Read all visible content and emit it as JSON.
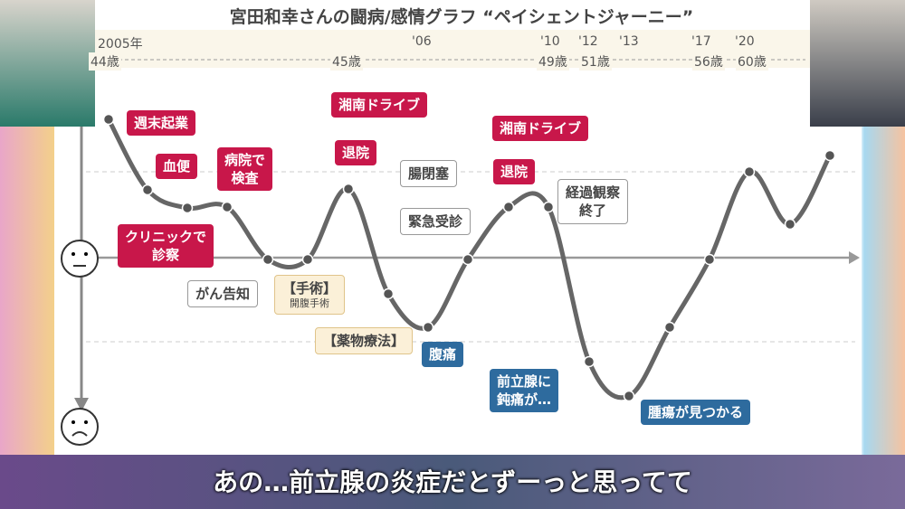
{
  "header": {
    "title": "宮田和幸さんの闘病/感情グラフ “ペイシェントジャーニー”"
  },
  "timeline": {
    "years": [
      "2005年",
      "'06",
      "'10",
      "'12",
      "'13",
      "'17",
      "'20"
    ],
    "ages": [
      "44歳",
      "45歳",
      "49歳",
      "51歳",
      "56歳",
      "60歳"
    ]
  },
  "annotations": [
    {
      "lines": [
        "週末起業"
      ],
      "color": "#c8174a"
    },
    {
      "lines": [
        "血便"
      ],
      "color": "#c8174a"
    },
    {
      "lines": [
        "病院で",
        "検査"
      ],
      "color": "#c8174a"
    },
    {
      "lines": [
        "クリニックで",
        "診察"
      ],
      "color": "#c8174a"
    },
    {
      "lines": [
        "湘南ドライブ"
      ],
      "color": "#c8174a"
    },
    {
      "lines": [
        "退院"
      ],
      "color": "#c8174a"
    },
    {
      "lines": [
        "湘南ドライブ"
      ],
      "color": "#c8174a"
    },
    {
      "lines": [
        "退院"
      ],
      "color": "#c8174a"
    },
    {
      "lines": [
        "がん告知"
      ],
      "color": "#ffffff"
    },
    {
      "lines": [
        "腸閉塞"
      ],
      "color": "#ffffff"
    },
    {
      "lines": [
        "緊急受診"
      ],
      "color": "#ffffff"
    },
    {
      "lines": [
        "経過観察",
        "終了"
      ],
      "color": "#ffffff"
    },
    {
      "lines": [
        "【手術】",
        "開腹手術"
      ],
      "color": "#fbf0d8"
    },
    {
      "lines": [
        "【薬物療法】"
      ],
      "color": "#fbf0d8"
    },
    {
      "lines": [
        "腹痛"
      ],
      "color": "#2e6b9e"
    },
    {
      "lines": [
        "前立腺に",
        "鈍痛が…"
      ],
      "color": "#2e6b9e"
    },
    {
      "lines": [
        "腫瘍が見つかる"
      ],
      "color": "#2e6b9e"
    }
  ],
  "caption": {
    "text": "あの…前立腺の炎症だとずーっと思ってて"
  }
}
